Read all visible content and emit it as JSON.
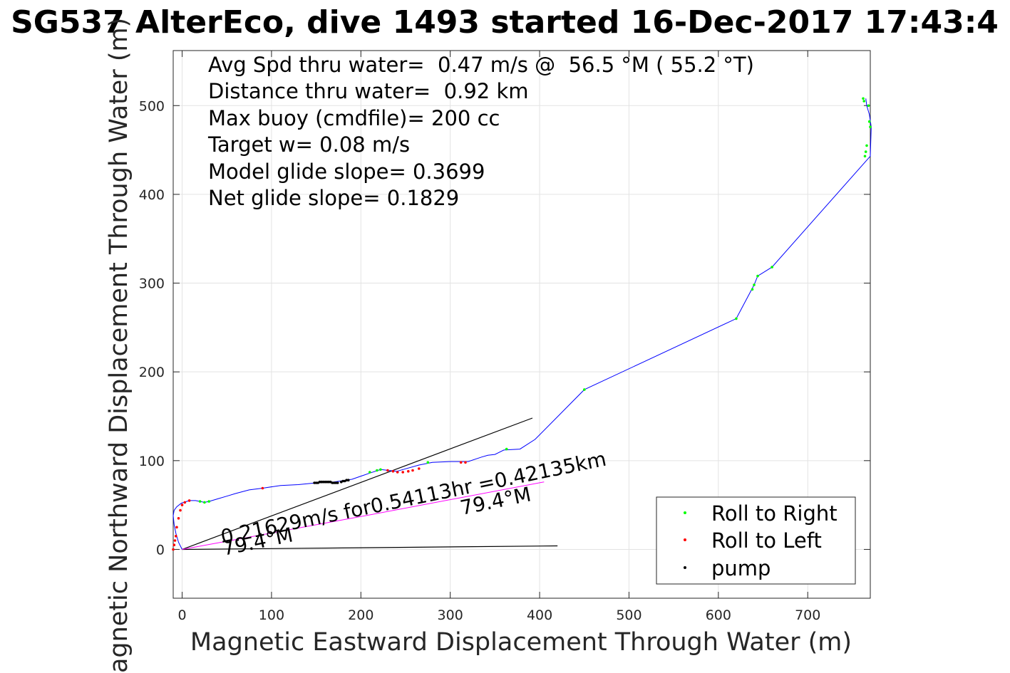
{
  "chart_data": {
    "type": "line",
    "title": "SG537 AlterEco, dive 1493 started 16-Dec-2017 17:43:4",
    "xlabel": "Magnetic Eastward Displacement Through Water (m)",
    "ylabel": "Magnetic Northward Displacement Through Water (m)",
    "xlim": [
      -10,
      770
    ],
    "ylim": [
      -55,
      562
    ],
    "xticks": [
      0,
      100,
      200,
      300,
      400,
      500,
      600,
      700
    ],
    "yticks": [
      0,
      100,
      200,
      300,
      400,
      500
    ],
    "grid": true,
    "legend_position": "bottom-right",
    "info_lines": [
      "Avg Spd thru water=  0.47 m/s @  56.5 °M ( 55.2 °T)",
      "Distance thru water=  0.92 km",
      "Max buoy (cmdfile)= 200 cc",
      "Target w= 0.08 m/s",
      "Model glide slope= 0.3699",
      "Net glide slope= 0.1829"
    ],
    "annotations": [
      "0.21629m/s for0.54113hr =0.42135km",
      "79.4°M",
      "79.4°M"
    ],
    "series": [
      {
        "name": "Roll to Right",
        "marker": "dot",
        "color": "#00ff00",
        "x": [
          20,
          25,
          30,
          210,
          218,
          222,
          275,
          363,
          450,
          620,
          638,
          640,
          644,
          660,
          762,
          763,
          764,
          765,
          766,
          768,
          769,
          770
        ],
        "y": [
          54,
          53,
          54,
          87,
          89,
          90,
          98,
          113,
          180,
          260,
          293,
          298,
          308,
          318,
          508,
          505,
          443,
          448,
          455,
          500,
          482,
          476
        ]
      },
      {
        "name": "Roll to Left",
        "marker": "dot",
        "color": "#ff0000",
        "x": [
          -10,
          -9,
          -8,
          -7,
          -6,
          -4,
          -2,
          0,
          3,
          8,
          90,
          230,
          236,
          241,
          247,
          253,
          258,
          265,
          312,
          317
        ],
        "y": [
          0,
          5,
          10,
          15,
          25,
          35,
          44,
          50,
          53,
          55,
          69,
          89,
          88,
          87,
          87,
          88,
          89,
          91,
          98,
          98
        ]
      },
      {
        "name": "pump",
        "marker": "dot",
        "color": "#000000",
        "x": [
          148,
          150,
          152,
          154,
          156,
          158,
          160,
          162,
          164,
          166,
          168,
          170,
          172,
          174,
          178,
          180,
          182,
          184,
          186
        ],
        "y": [
          75,
          75,
          75,
          76,
          76,
          76,
          76,
          76,
          76,
          76,
          75,
          75,
          75,
          75,
          76,
          77,
          77,
          78,
          78
        ]
      },
      {
        "name": "",
        "marker": "line",
        "color": "#0000ff",
        "x": [
          0,
          -4,
          -7,
          -9,
          -10,
          -9,
          -6,
          -1,
          8,
          15,
          20,
          25,
          30,
          40,
          50,
          60,
          75,
          90,
          110,
          130,
          150,
          170,
          190,
          210,
          222,
          240,
          265,
          280,
          300,
          320,
          335,
          342,
          350,
          360,
          378,
          395,
          450,
          620,
          640,
          644,
          660,
          770,
          771,
          769,
          766,
          765
        ],
        "y": [
          0,
          8,
          18,
          28,
          38,
          44,
          48,
          52,
          55,
          55,
          54,
          53,
          54,
          57,
          60,
          63,
          67,
          69,
          72,
          73,
          75,
          76,
          79,
          86,
          90,
          88,
          95,
          98,
          99,
          99,
          104,
          106,
          107,
          112,
          113,
          124,
          180,
          260,
          298,
          308,
          318,
          443,
          476,
          490,
          500,
          508
        ]
      },
      {
        "name": "",
        "marker": "line",
        "color": "#ff00ff",
        "x": [
          0,
          200,
          405
        ],
        "y": [
          0,
          37,
          76
        ]
      }
    ],
    "reference_lines": [
      {
        "color": "#000000",
        "x": [
          0,
          392
        ],
        "y": [
          0,
          148
        ]
      },
      {
        "color": "#000000",
        "x": [
          0,
          420
        ],
        "y": [
          0,
          4
        ]
      }
    ]
  }
}
